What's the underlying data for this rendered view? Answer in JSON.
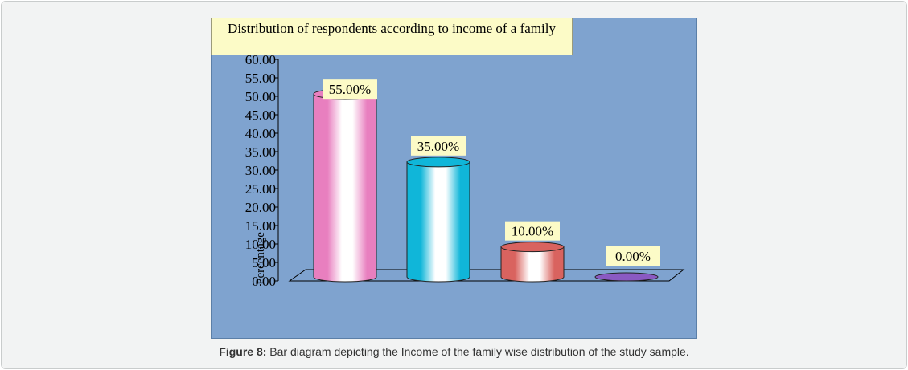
{
  "chart_data": {
    "type": "bar",
    "title": "Distribution of respondents according to income of a family",
    "ylabel": "Percentage",
    "xlabel": "",
    "categories": [
      "",
      "",
      "",
      ""
    ],
    "values": [
      55.0,
      35.0,
      10.0,
      0.0
    ],
    "data_labels": [
      "55.00%",
      "35.00%",
      "10.00%",
      "0.00%"
    ],
    "ylim": [
      0,
      60
    ],
    "yticks": [
      "0.00",
      "5.00",
      "10.00",
      "15.00",
      "20.00",
      "25.00",
      "30.00",
      "35.00",
      "40.00",
      "45.00",
      "50.00",
      "55.00",
      "60.00"
    ],
    "grid": false,
    "legend": "none",
    "bar_style": "3d-cylinder",
    "colors": [
      "#e87fbf",
      "#10b6d9",
      "#d9635f",
      "#8a5ac2"
    ],
    "plot_background": "#7fa3cf",
    "label_background": "#fcfbc7"
  },
  "caption": {
    "label": "Figure 8:",
    "text": " Bar diagram depicting the Income of the family wise distribution of the study sample."
  }
}
